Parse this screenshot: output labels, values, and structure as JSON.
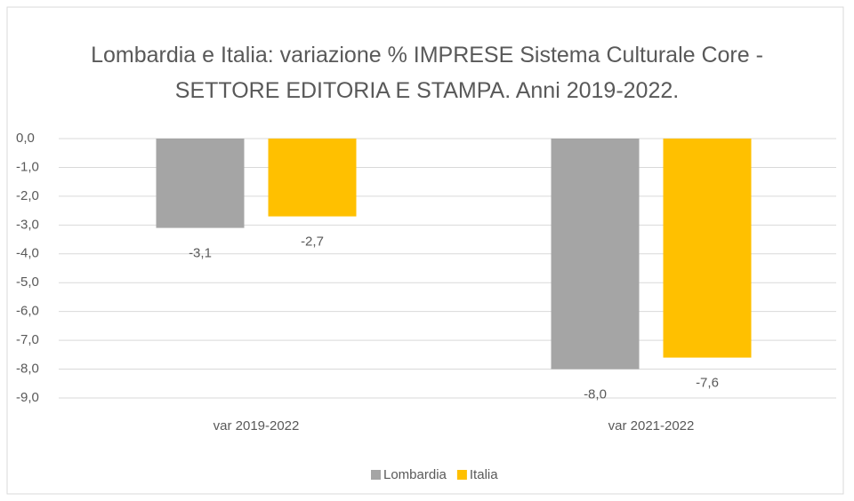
{
  "chart_data": {
    "type": "bar",
    "title": "Lombardia e Italia: variazione % IMPRESE Sistema Culturale Core - SETTORE EDITORIA E STAMPA. Anni 2019-2022.",
    "categories": [
      "var 2019-2022",
      "var 2021-2022"
    ],
    "series": [
      {
        "name": "Lombardia",
        "color": "#a5a5a5",
        "values": [
          -3.1,
          -8.0
        ],
        "value_labels": [
          "-3,1",
          "-8,0"
        ]
      },
      {
        "name": "Italia",
        "color": "#ffc000",
        "values": [
          -2.7,
          -7.6
        ],
        "value_labels": [
          "-2,7",
          "-7,6"
        ]
      }
    ],
    "ylim": [
      -9,
      0
    ],
    "yticks": [
      {
        "value": 0,
        "label": "0,0"
      },
      {
        "value": -1,
        "label": "-1,0"
      },
      {
        "value": -2,
        "label": "-2,0"
      },
      {
        "value": -3,
        "label": "-3,0"
      },
      {
        "value": -4,
        "label": "-4,0"
      },
      {
        "value": -5,
        "label": "-5,0"
      },
      {
        "value": -6,
        "label": "-6,0"
      },
      {
        "value": -7,
        "label": "-7,0"
      },
      {
        "value": -8,
        "label": "-8,0"
      },
      {
        "value": -9,
        "label": "-9,0"
      }
    ],
    "grid": true,
    "legend": "bottom"
  }
}
